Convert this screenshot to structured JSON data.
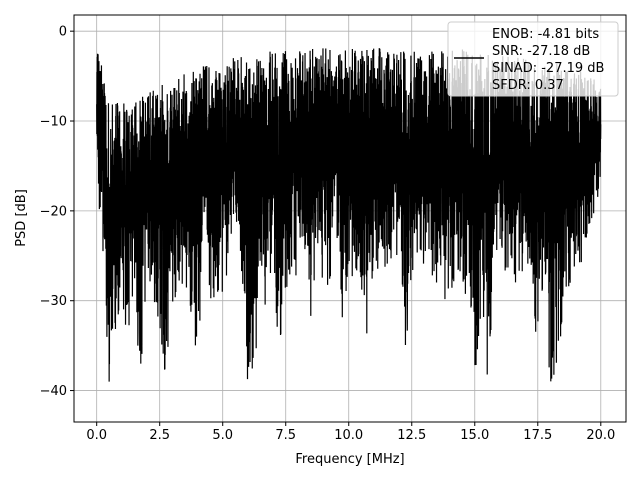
{
  "chart_data": {
    "type": "line",
    "xlabel": "Frequency [MHz]",
    "ylabel": "PSD [dB]",
    "xlim": [
      -0.9,
      21.0
    ],
    "ylim": [
      -43.5,
      1.8
    ],
    "grid": true,
    "legend_placement": "top-right",
    "line_color": "#000000",
    "xticks": [
      {
        "value": 0.0,
        "label": "0.0"
      },
      {
        "value": 2.5,
        "label": "2.5"
      },
      {
        "value": 5.0,
        "label": "5.0"
      },
      {
        "value": 7.5,
        "label": "7.5"
      },
      {
        "value": 10.0,
        "label": "10.0"
      },
      {
        "value": 12.5,
        "label": "12.5"
      },
      {
        "value": 15.0,
        "label": "15.0"
      },
      {
        "value": 17.5,
        "label": "17.5"
      },
      {
        "value": 20.0,
        "label": "20.0"
      }
    ],
    "yticks": [
      {
        "value": 0,
        "label": "0"
      },
      {
        "value": -10,
        "label": "−10"
      },
      {
        "value": -20,
        "label": "−20"
      },
      {
        "value": -30,
        "label": "−30"
      },
      {
        "value": -40,
        "label": "−40"
      }
    ],
    "legend_lines": [
      "ENOB: -4.81 bits",
      "SNR: -27.18 dB",
      "SINAD: -27.19 dB",
      "SFDR: 0.37"
    ],
    "series": [
      {
        "x": [
          0.0,
          0.25,
          0.5,
          0.75,
          1.0,
          1.25,
          1.5,
          1.75,
          2.0,
          2.25,
          2.5,
          2.75,
          3.0,
          3.25,
          3.5,
          3.75,
          4.0,
          4.25,
          4.5,
          4.75,
          5.0,
          5.25,
          5.5,
          5.75,
          6.0,
          6.25,
          6.5,
          6.75,
          7.0,
          7.25,
          7.5,
          7.75,
          8.0,
          8.25,
          8.5,
          8.75,
          9.0,
          9.25,
          9.5,
          9.75,
          10.0,
          10.25,
          10.5,
          10.75,
          11.0,
          11.25,
          11.5,
          11.75,
          12.0,
          12.25,
          12.5,
          12.75,
          13.0,
          13.25,
          13.5,
          13.75,
          14.0,
          14.25,
          14.5,
          14.75,
          15.0,
          15.25,
          15.5,
          15.75,
          16.0,
          16.25,
          16.5,
          16.75,
          17.0,
          17.25,
          17.5,
          17.75,
          18.0,
          18.25,
          18.5,
          18.75,
          19.0,
          19.25,
          19.5,
          19.75,
          20.0
        ],
        "max_db": [
          -1.0,
          -4.5,
          -8.5,
          -7.8,
          -8.0,
          -7.6,
          -7.2,
          -7.0,
          -6.6,
          -6.3,
          -6.2,
          -5.5,
          -5.0,
          -4.8,
          -4.5,
          -4.2,
          -4.0,
          -3.8,
          -3.6,
          -3.4,
          -3.2,
          -3.0,
          -3.0,
          -2.8,
          -2.6,
          -2.5,
          -2.4,
          -2.3,
          -2.2,
          -2.0,
          -2.1,
          -2.0,
          -2.0,
          -2.2,
          -1.9,
          -2.0,
          -1.9,
          -1.8,
          -2.0,
          -1.9,
          -1.8,
          -1.9,
          -1.9,
          -2.0,
          -1.7,
          -1.8,
          -1.9,
          -1.8,
          -1.7,
          -1.8,
          -1.9,
          -1.7,
          -1.8,
          -1.8,
          -2.0,
          -1.9,
          -2.0,
          -2.1,
          -2.0,
          -2.2,
          -2.3,
          -2.3,
          -2.4,
          -2.3,
          -2.5,
          -2.5,
          -2.6,
          -2.6,
          -2.8,
          -3.0,
          -3.0,
          -3.2,
          -3.4,
          -3.6,
          -3.8,
          -4.0,
          -4.2,
          -4.5,
          -4.8,
          -5.2,
          -5.0
        ],
        "min_db": [
          -16.0,
          -25.0,
          -40.0,
          -33.0,
          -29.5,
          -35.0,
          -31.0,
          -38.5,
          -27.0,
          -31.5,
          -33.0,
          -39.0,
          -31.0,
          -29.5,
          -29.0,
          -33.0,
          -41.0,
          -25.0,
          -31.5,
          -29.0,
          -29.0,
          -26.0,
          -25.0,
          -28.0,
          -39.5,
          -40.5,
          -29.0,
          -31.0,
          -30.0,
          -35.5,
          -29.0,
          -26.0,
          -28.0,
          -26.0,
          -35.0,
          -28.0,
          -30.0,
          -27.5,
          -25.0,
          -32.0,
          -28.0,
          -27.0,
          -30.0,
          -34.5,
          -27.0,
          -28.0,
          -26.0,
          -25.0,
          -26.0,
          -35.5,
          -28.0,
          -25.0,
          -26.0,
          -27.5,
          -28.0,
          -30.0,
          -29.5,
          -27.0,
          -30.0,
          -31.5,
          -40.0,
          -31.0,
          -39.0,
          -30.0,
          -25.0,
          -28.0,
          -28.5,
          -28.0,
          -26.0,
          -29.5,
          -38.0,
          -29.0,
          -41.5,
          -37.5,
          -32.0,
          -29.5,
          -26.5,
          -28.0,
          -24.0,
          -21.0,
          -16.0
        ]
      }
    ]
  }
}
